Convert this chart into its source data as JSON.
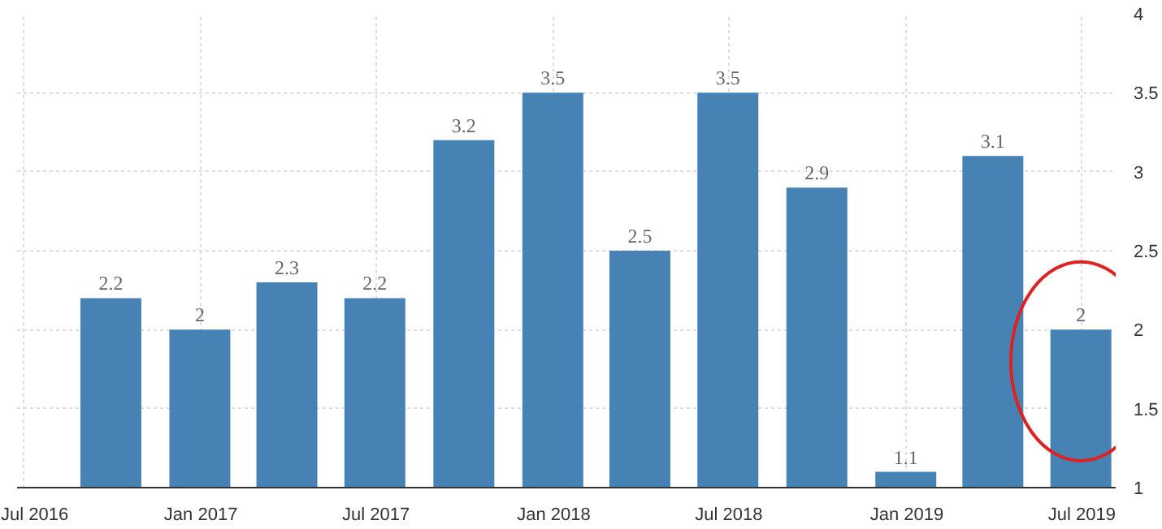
{
  "chart_data": {
    "type": "bar",
    "x": [
      "2016-09-30",
      "2016-12-31",
      "2017-03-31",
      "2017-06-30",
      "2017-09-30",
      "2017-12-31",
      "2018-03-31",
      "2018-06-30",
      "2018-09-30",
      "2018-12-31",
      "2019-03-31",
      "2019-06-30"
    ],
    "values": [
      2.2,
      2,
      2.3,
      2.2,
      3.2,
      3.5,
      2.5,
      3.5,
      2.9,
      1.1,
      3.1,
      2
    ],
    "color": "#4682b4",
    "data_labels": true,
    "grid": true,
    "ylim": [
      1,
      4
    ],
    "yticks": [
      1,
      1.5,
      2,
      2.5,
      3,
      3.5,
      4
    ],
    "xlim": [
      "2016-06-25",
      "2019-08-05"
    ],
    "xticks": [
      {
        "value": "2016-07-01",
        "label": "Jul 2016"
      },
      {
        "value": "2017-01-01",
        "label": "Jan 2017"
      },
      {
        "value": "2017-07-01",
        "label": "Jul 2017"
      },
      {
        "value": "2018-01-01",
        "label": "Jan 2018"
      },
      {
        "value": "2018-07-01",
        "label": "Jul 2018"
      },
      {
        "value": "2019-01-01",
        "label": "Jan 2019"
      },
      {
        "value": "2019-07-01",
        "label": "Jul 2019"
      }
    ]
  }
}
